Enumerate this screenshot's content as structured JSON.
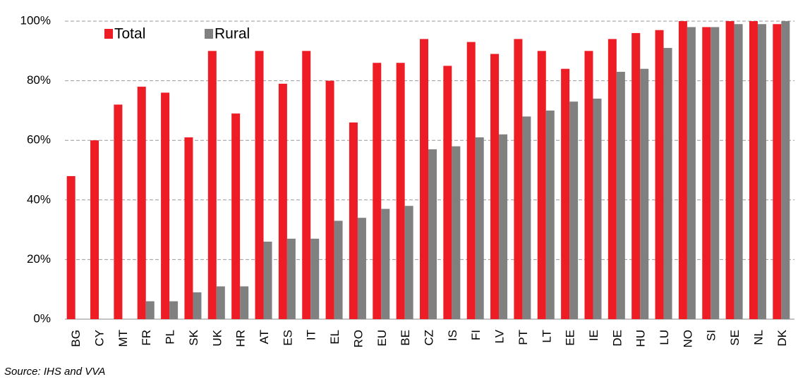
{
  "chart_data": {
    "type": "bar",
    "source": "Source: IHS and VVA",
    "categories": [
      "BG",
      "CY",
      "MT",
      "FR",
      "PL",
      "SK",
      "UK",
      "HR",
      "AT",
      "ES",
      "IT",
      "EL",
      "RO",
      "EU",
      "BE",
      "CZ",
      "IS",
      "FI",
      "LV",
      "PT",
      "LT",
      "EE",
      "IE",
      "DE",
      "HU",
      "LU",
      "NO",
      "SI",
      "SE",
      "NL",
      "DK"
    ],
    "series": [
      {
        "name": "Total",
        "color": "#ee1c25",
        "values": [
          48,
          60,
          72,
          78,
          76,
          61,
          90,
          69,
          90,
          79,
          90,
          80,
          66,
          86,
          86,
          94,
          85,
          93,
          89,
          94,
          90,
          84,
          90,
          94,
          96,
          97,
          100,
          98,
          100,
          100,
          99
        ]
      },
      {
        "name": "Rural",
        "color": "#808080",
        "values": [
          null,
          null,
          null,
          6,
          6,
          9,
          11,
          11,
          26,
          27,
          27,
          33,
          34,
          37,
          38,
          57,
          58,
          61,
          62,
          68,
          70,
          73,
          74,
          83,
          84,
          91,
          98,
          98,
          99,
          99,
          100
        ]
      }
    ],
    "ylim": [
      0,
      100
    ],
    "yticks": [
      {
        "value": 0,
        "label": "0%"
      },
      {
        "value": 20,
        "label": "20%"
      },
      {
        "value": 40,
        "label": "40%"
      },
      {
        "value": 60,
        "label": "60%"
      },
      {
        "value": 80,
        "label": "80%"
      },
      {
        "value": 100,
        "label": "100%"
      }
    ],
    "grid": true
  }
}
